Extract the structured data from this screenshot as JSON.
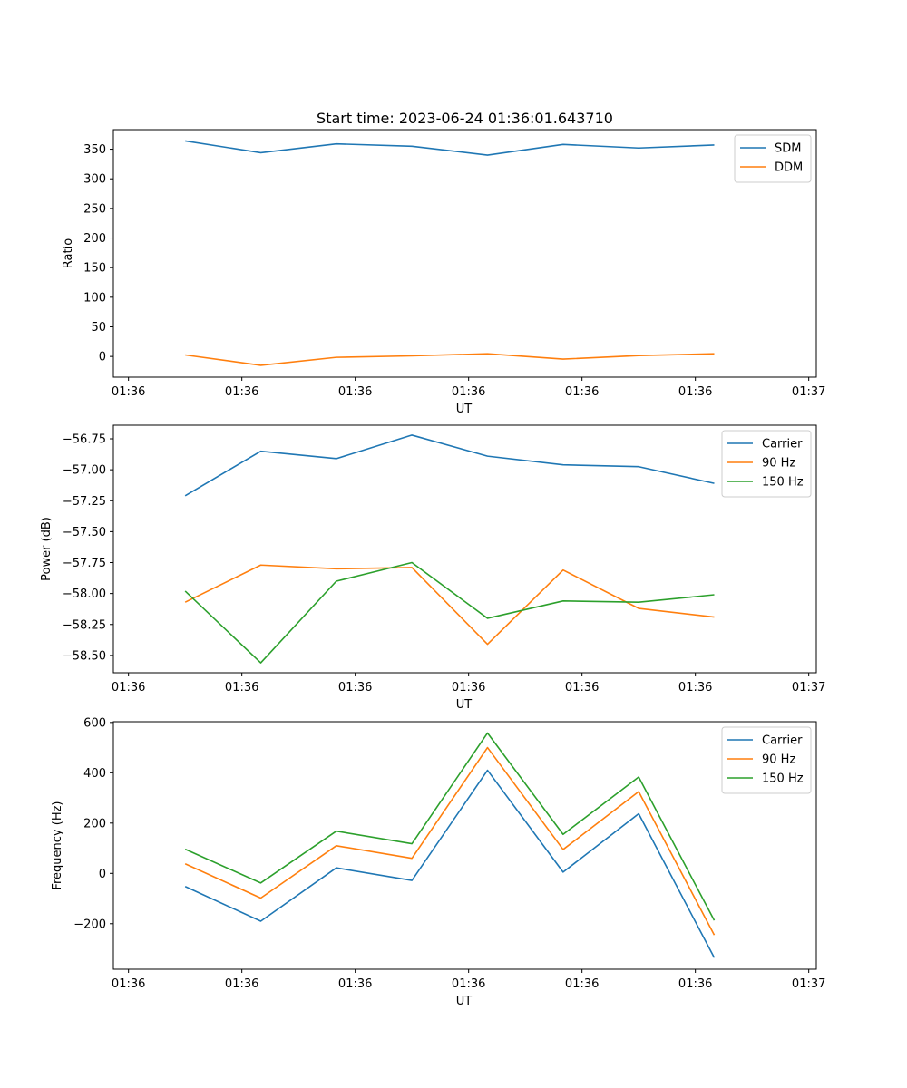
{
  "figure": {
    "title": "Start time: 2023-06-24 01:36:01.643710"
  },
  "colors": {
    "blue": "#1f77b4",
    "orange": "#ff7f0e",
    "green": "#2ca02c"
  },
  "chart_data": [
    {
      "type": "line",
      "title": "Start time: 2023-06-24 01:36:01.643710",
      "xlabel": "UT",
      "ylabel": "Ratio",
      "x_tick_labels": [
        "01:36",
        "01:36",
        "01:36",
        "01:36",
        "01:36",
        "01:36",
        "01:37"
      ],
      "y_ticks": [
        0,
        50,
        100,
        150,
        200,
        250,
        300,
        350
      ],
      "xlim": [
        -0.2,
        9.1
      ],
      "ylim": [
        -35,
        383
      ],
      "legend_position": "upper-right",
      "series": [
        {
          "name": "SDM",
          "color": "#1f77b4",
          "x": [
            0.75,
            1.75,
            2.75,
            3.75,
            4.75,
            5.75,
            6.75,
            7.75
          ],
          "y": [
            364,
            344,
            359,
            355,
            340,
            358,
            352,
            357
          ]
        },
        {
          "name": "DDM",
          "color": "#ff7f0e",
          "x": [
            0.75,
            1.75,
            2.75,
            3.75,
            4.75,
            5.75,
            6.75,
            7.75
          ],
          "y": [
            2.5,
            -15,
            -1.5,
            1,
            4.5,
            -4.5,
            1.5,
            4.5
          ]
        }
      ]
    },
    {
      "type": "line",
      "xlabel": "UT",
      "ylabel": "Power (dB)",
      "x_tick_labels": [
        "01:36",
        "01:36",
        "01:36",
        "01:36",
        "01:36",
        "01:36",
        "01:37"
      ],
      "y_ticks": [
        -58.5,
        -58.25,
        -58.0,
        -57.75,
        -57.5,
        -57.25,
        -57.0,
        -56.75
      ],
      "y_tick_labels": [
        "−58.50",
        "−58.25",
        "−58.00",
        "−57.75",
        "−57.50",
        "−57.25",
        "−57.00",
        "−56.75"
      ],
      "xlim": [
        -0.2,
        9.1
      ],
      "ylim": [
        -58.64,
        -56.64
      ],
      "legend_position": "upper-right",
      "series": [
        {
          "name": "Carrier",
          "color": "#1f77b4",
          "x": [
            0.75,
            1.75,
            2.75,
            3.75,
            4.75,
            5.75,
            6.75,
            7.75
          ],
          "y": [
            -57.21,
            -56.85,
            -56.91,
            -56.72,
            -56.89,
            -56.96,
            -56.975,
            -57.11
          ]
        },
        {
          "name": "90 Hz",
          "color": "#ff7f0e",
          "x": [
            0.75,
            1.75,
            2.75,
            3.75,
            4.75,
            5.75,
            6.75,
            7.75
          ],
          "y": [
            -58.07,
            -57.77,
            -57.8,
            -57.79,
            -58.41,
            -57.81,
            -58.12,
            -58.19
          ]
        },
        {
          "name": "150 Hz",
          "color": "#2ca02c",
          "x": [
            0.75,
            1.75,
            2.75,
            3.75,
            4.75,
            5.75,
            6.75,
            7.75
          ],
          "y": [
            -57.98,
            -58.56,
            -57.9,
            -57.75,
            -58.2,
            -58.06,
            -58.07,
            -58.01
          ]
        }
      ]
    },
    {
      "type": "line",
      "xlabel": "UT",
      "ylabel": "Frequency (Hz)",
      "x_tick_labels": [
        "01:36",
        "01:36",
        "01:36",
        "01:36",
        "01:36",
        "01:36",
        "01:37"
      ],
      "y_ticks": [
        -200,
        0,
        200,
        400,
        600
      ],
      "y_tick_labels": [
        "−200",
        "0",
        "200",
        "400",
        "600"
      ],
      "xlim": [
        -0.2,
        9.1
      ],
      "ylim": [
        -381,
        603
      ],
      "legend_position": "upper-right",
      "series": [
        {
          "name": "Carrier",
          "color": "#1f77b4",
          "x": [
            0.75,
            1.75,
            2.75,
            3.75,
            4.75,
            5.75,
            6.75,
            7.75
          ],
          "y": [
            -52,
            -190,
            22,
            -28,
            410,
            5,
            237,
            -335
          ]
        },
        {
          "name": "90 Hz",
          "color": "#ff7f0e",
          "x": [
            0.75,
            1.75,
            2.75,
            3.75,
            4.75,
            5.75,
            6.75,
            7.75
          ],
          "y": [
            38,
            -98,
            110,
            60,
            500,
            95,
            325,
            -245
          ]
        },
        {
          "name": "150 Hz",
          "color": "#2ca02c",
          "x": [
            0.75,
            1.75,
            2.75,
            3.75,
            4.75,
            5.75,
            6.75,
            7.75
          ],
          "y": [
            96,
            -38,
            168,
            118,
            558,
            155,
            383,
            -187
          ]
        }
      ]
    }
  ]
}
